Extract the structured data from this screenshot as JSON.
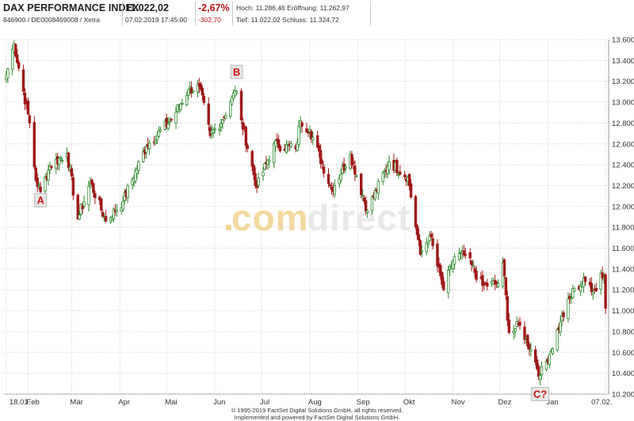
{
  "header": {
    "index_name": "DAX PERFORMANCE INDEX",
    "isin_line": "846900 / DE0008469008 / Xetra",
    "last_price": "11.022,02",
    "timestamp": "07.02.2019 17:45:00",
    "change_pct": "-2,67%",
    "change_abs": "-302,70",
    "high_label": "Hoch:",
    "high_value": "11.286,46",
    "open_label": "Eröffnung:",
    "open_value": "11.262,97",
    "low_label": "Tief:",
    "low_value": "11.022,02",
    "close_label": "Schluss:",
    "close_value": "11.324,72"
  },
  "watermark": {
    "dot": ".",
    "com": "com",
    "direct": "direct"
  },
  "footer": {
    "line1": "© 1995-2019 FactSet Digital Solutions GmbH, all rights reserved.",
    "line2": "Implemented and powered by FactSet Digital Solutions GmbH."
  },
  "colors": {
    "up": "#2e8b2e",
    "down": "#a01818",
    "grid": "#d0d0d0",
    "marker_fill": "#e6e6e6",
    "marker_text": "#d21414"
  },
  "chart_data": {
    "type": "candlestick",
    "title": "",
    "xlabel": "",
    "ylabel": "",
    "ylim": [
      10200,
      13600
    ],
    "y_ticks": [
      10200,
      10400,
      10600,
      10800,
      11000,
      11200,
      11400,
      11600,
      11800,
      12000,
      12200,
      12400,
      12600,
      12800,
      13000,
      13200,
      13400,
      13600
    ],
    "y_tick_labels": [
      "10.200",
      "10.400",
      "10.600",
      "10.800",
      "11.000",
      "11.200",
      "11.400",
      "11.600",
      "11.800",
      "12.000",
      "12.200",
      "12.400",
      "12.600",
      "12.800",
      "13.000",
      "13.200",
      "13.400",
      "13.600"
    ],
    "x_tick_labels": [
      "18.01.",
      "Feb",
      "Mär",
      "Apr",
      "Mai",
      "Jun",
      "Jul",
      "Aug",
      "Sep",
      "Okt",
      "Nov",
      "Dez",
      "Jan",
      "07.02."
    ],
    "x_tick_dates": [
      "2018-01-18",
      "2018-02-01",
      "2018-03-01",
      "2018-04-01",
      "2018-05-01",
      "2018-06-01",
      "2018-07-01",
      "2018-08-01",
      "2018-09-01",
      "2018-10-01",
      "2018-11-01",
      "2018-12-01",
      "2019-01-01",
      "2019-02-07"
    ],
    "grid": true,
    "anchors": [
      {
        "date": "2018-01-18",
        "value": 13260
      },
      {
        "date": "2018-01-23",
        "value": 13560
      },
      {
        "date": "2018-02-02",
        "value": 12800
      },
      {
        "date": "2018-02-06",
        "value": 12250
      },
      {
        "date": "2018-02-09",
        "value": 12140
      },
      {
        "date": "2018-02-15",
        "value": 12390
      },
      {
        "date": "2018-02-26",
        "value": 12510
      },
      {
        "date": "2018-03-05",
        "value": 11880
      },
      {
        "date": "2018-03-13",
        "value": 12230
      },
      {
        "date": "2018-03-23",
        "value": 11860
      },
      {
        "date": "2018-04-03",
        "value": 12050
      },
      {
        "date": "2018-04-18",
        "value": 12580
      },
      {
        "date": "2018-05-04",
        "value": 12830
      },
      {
        "date": "2018-05-15",
        "value": 13120
      },
      {
        "date": "2018-05-22",
        "value": 13150
      },
      {
        "date": "2018-05-29",
        "value": 12680
      },
      {
        "date": "2018-06-06",
        "value": 12830
      },
      {
        "date": "2018-06-12",
        "value": 13050
      },
      {
        "date": "2018-06-15",
        "value": 13100
      },
      {
        "date": "2018-06-18",
        "value": 12830
      },
      {
        "date": "2018-06-28",
        "value": 12180
      },
      {
        "date": "2018-07-09",
        "value": 12600
      },
      {
        "date": "2018-07-23",
        "value": 12550
      },
      {
        "date": "2018-07-26",
        "value": 12820
      },
      {
        "date": "2018-08-01",
        "value": 12740
      },
      {
        "date": "2018-08-15",
        "value": 12160
      },
      {
        "date": "2018-08-27",
        "value": 12500
      },
      {
        "date": "2018-09-07",
        "value": 11960
      },
      {
        "date": "2018-09-21",
        "value": 12430
      },
      {
        "date": "2018-10-03",
        "value": 12280
      },
      {
        "date": "2018-10-11",
        "value": 11540
      },
      {
        "date": "2018-10-17",
        "value": 11720
      },
      {
        "date": "2018-10-26",
        "value": 11200
      },
      {
        "date": "2018-11-02",
        "value": 11520
      },
      {
        "date": "2018-11-09",
        "value": 11530
      },
      {
        "date": "2018-11-20",
        "value": 11240
      },
      {
        "date": "2018-11-30",
        "value": 11260
      },
      {
        "date": "2018-12-03",
        "value": 11460
      },
      {
        "date": "2018-12-07",
        "value": 10790
      },
      {
        "date": "2018-12-14",
        "value": 10860
      },
      {
        "date": "2018-12-21",
        "value": 10630
      },
      {
        "date": "2018-12-27",
        "value": 10380
      },
      {
        "date": "2019-01-02",
        "value": 10580
      },
      {
        "date": "2019-01-09",
        "value": 10890
      },
      {
        "date": "2019-01-18",
        "value": 11210
      },
      {
        "date": "2019-01-25",
        "value": 11280
      },
      {
        "date": "2019-02-01",
        "value": 11190
      },
      {
        "date": "2019-02-04",
        "value": 11360
      },
      {
        "date": "2019-02-06",
        "value": 11320
      },
      {
        "date": "2019-02-07",
        "value": 11022
      }
    ],
    "annotations": [
      {
        "label": "A",
        "date": "2018-02-09",
        "value": 12060
      },
      {
        "label": "B",
        "date": "2018-06-15",
        "value": 13290
      },
      {
        "label": "C?",
        "date": "2018-12-27",
        "value": 10200
      }
    ]
  }
}
